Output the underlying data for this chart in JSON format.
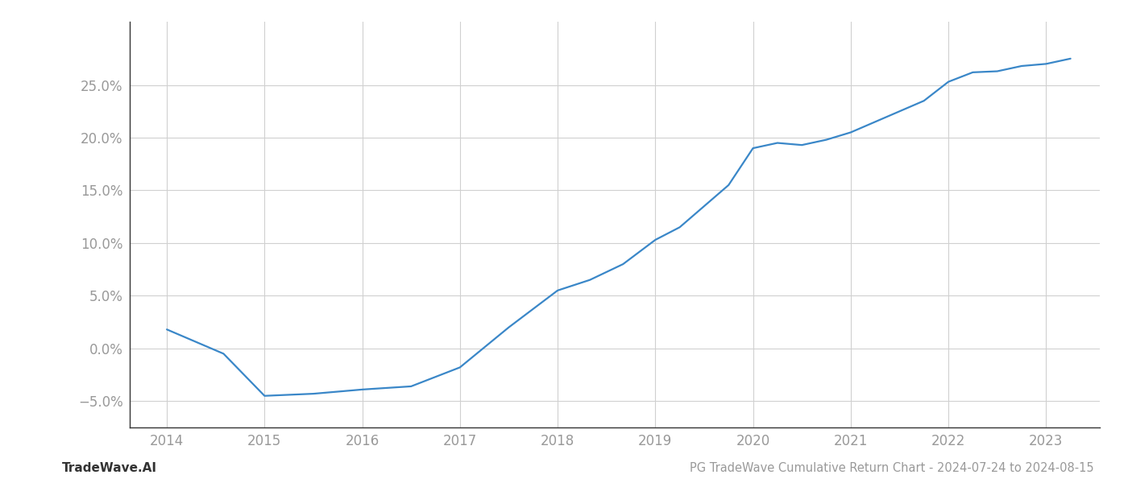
{
  "title": "PG TradeWave Cumulative Return Chart - 2024-07-24 to 2024-08-15",
  "watermark": "TradeWave.AI",
  "line_color": "#3a87c8",
  "background_color": "#ffffff",
  "grid_color": "#d0d0d0",
  "x_values": [
    2014.0,
    2014.58,
    2015.0,
    2015.5,
    2016.0,
    2016.5,
    2017.0,
    2017.5,
    2018.0,
    2018.33,
    2018.67,
    2019.0,
    2019.25,
    2019.5,
    2019.75,
    2020.0,
    2020.25,
    2020.5,
    2020.75,
    2021.0,
    2021.25,
    2021.5,
    2021.75,
    2022.0,
    2022.25,
    2022.5,
    2022.75,
    2023.0,
    2023.25
  ],
  "y_values": [
    1.8,
    -0.5,
    -4.5,
    -4.3,
    -3.9,
    -3.6,
    -1.8,
    2.0,
    5.5,
    6.5,
    8.0,
    10.3,
    11.5,
    13.5,
    15.5,
    19.0,
    19.5,
    19.3,
    19.8,
    20.5,
    21.5,
    22.5,
    23.5,
    25.3,
    26.2,
    26.3,
    26.8,
    27.0,
    27.5
  ],
  "yticks": [
    -5.0,
    0.0,
    5.0,
    10.0,
    15.0,
    20.0,
    25.0
  ],
  "xticks": [
    2014,
    2015,
    2016,
    2017,
    2018,
    2019,
    2020,
    2021,
    2022,
    2023
  ],
  "xlim": [
    2013.62,
    2023.55
  ],
  "ylim": [
    -7.5,
    31.0
  ],
  "line_width": 1.6,
  "title_fontsize": 10.5,
  "tick_fontsize": 12,
  "watermark_fontsize": 11,
  "axis_color": "#999999",
  "tick_color": "#999999",
  "spine_color": "#333333"
}
